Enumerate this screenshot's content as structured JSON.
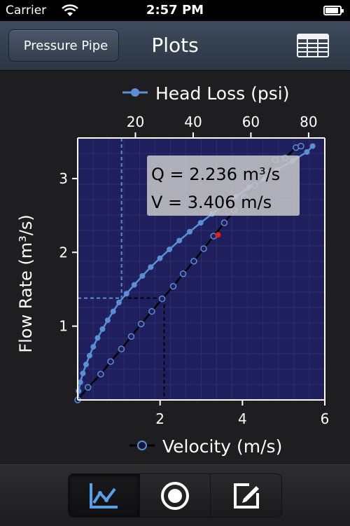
{
  "status": {
    "carrier": "Carrier",
    "time": "2:57 PM"
  },
  "nav": {
    "back_label": "Pressure Pipe",
    "title": "Plots"
  },
  "toolbar": {
    "items": [
      "chart-icon",
      "record-icon",
      "edit-icon"
    ],
    "active": 0
  },
  "readout": {
    "q": "Q = 2.236 m³/s",
    "v": "V = 3.406 m/s"
  },
  "chart_data": {
    "type": "line",
    "ylabel": "Flow Rate (m³/s)",
    "ylim": [
      0,
      3.55
    ],
    "yticks": [
      1,
      2,
      3
    ],
    "grid": true,
    "x_bottom": {
      "label": "Velocity (m/s)",
      "lim": [
        0,
        6
      ],
      "ticks": [
        2,
        4,
        6
      ]
    },
    "x_top": {
      "label": "Head Loss (psi)",
      "lim": [
        0,
        85.6
      ],
      "ticks": [
        20,
        40,
        60,
        80
      ]
    },
    "series": [
      {
        "name": "Head Loss (psi)",
        "axis": "top",
        "color": "#5b8fd4",
        "x": [
          0,
          0.3,
          0.9,
          1.8,
          2.9,
          4.1,
          5.4,
          6.9,
          8.6,
          10.4,
          12.3,
          14.3,
          16.9,
          19.6,
          22.4,
          25.3,
          28.5,
          31.8,
          35.2,
          38.8,
          42.6,
          46.5,
          50.6,
          54.9,
          59.3,
          64.2,
          69.1,
          74.4,
          79.4,
          81.4
        ],
        "y": [
          0,
          0.12,
          0.24,
          0.36,
          0.48,
          0.6,
          0.72,
          0.84,
          0.96,
          1.08,
          1.2,
          1.32,
          1.44,
          1.56,
          1.68,
          1.8,
          1.92,
          2.04,
          2.16,
          2.28,
          2.4,
          2.52,
          2.64,
          2.76,
          2.88,
          3.0,
          3.12,
          3.24,
          3.36,
          3.44
        ]
      },
      {
        "name": "Velocity (m/s)",
        "axis": "bottom",
        "color": "#000000",
        "x": [
          0,
          0.25,
          0.56,
          0.8,
          1.06,
          1.3,
          1.54,
          1.8,
          2.05,
          2.32,
          2.56,
          2.82,
          3.06,
          3.3,
          3.56,
          3.8,
          4.05,
          4.3,
          4.56,
          4.8,
          5.04,
          5.3,
          5.42
        ],
        "y": [
          0,
          0.17,
          0.35,
          0.52,
          0.69,
          0.86,
          1.03,
          1.2,
          1.37,
          1.54,
          1.71,
          1.88,
          2.05,
          2.22,
          2.4,
          2.57,
          2.74,
          2.91,
          3.08,
          3.25,
          3.28,
          3.42,
          3.44
        ]
      }
    ],
    "highlight": {
      "velocity": 3.406,
      "flow": 2.236,
      "color": "#e02020"
    },
    "crosshair_top": {
      "x_psi": 15.2,
      "y": 1.38
    },
    "crosshair_bottom": {
      "x": 2.1,
      "y": 1.38
    }
  }
}
